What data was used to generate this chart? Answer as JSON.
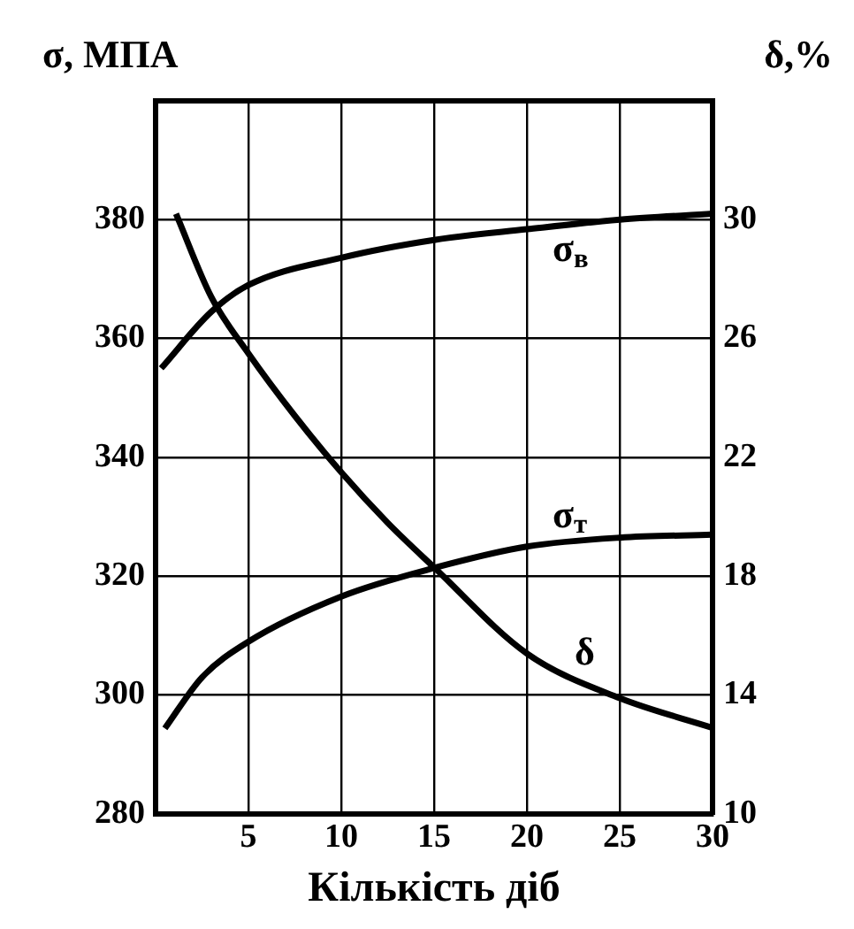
{
  "chart_data": {
    "type": "line",
    "xlabel": "Кількість діб",
    "ylabel": "σ, МПА",
    "y2label": "δ,%",
    "xlim": [
      0,
      30
    ],
    "xticks": [
      5,
      10,
      15,
      20,
      25,
      30
    ],
    "ylim": [
      280,
      400
    ],
    "yticks": [
      280,
      300,
      320,
      340,
      360,
      380
    ],
    "y2lim": [
      10,
      34
    ],
    "y2ticks": [
      10,
      14,
      18,
      22,
      26,
      30
    ],
    "grid": true,
    "marker": "none",
    "line_style": "solid",
    "series": [
      {
        "name": "σ$_{в}$",
        "color": "#000000",
        "x": [
          0.3,
          3,
          5,
          10,
          15,
          20,
          25,
          30
        ],
        "values": [
          355,
          364.5,
          369,
          373.6,
          376.6,
          378.4,
          380,
          381
        ]
      },
      {
        "name": "σ$_{т}$",
        "color": "#000000",
        "x": [
          0.5,
          2.5,
          5,
          10,
          15,
          20,
          25,
          30
        ],
        "values": [
          294.4,
          303,
          309,
          316.6,
          321.4,
          325,
          326.5,
          327
        ]
      },
      {
        "name": "δ",
        "color": "#000000",
        "axis": "y2",
        "x": [
          1.1,
          3,
          5,
          7.5,
          10,
          12.5,
          15,
          20,
          25,
          30
        ],
        "values": [
          30.2,
          27.4,
          25.5,
          23.4,
          21.5,
          19.8,
          18.3,
          15.4,
          13.9,
          12.9
        ]
      }
    ]
  }
}
